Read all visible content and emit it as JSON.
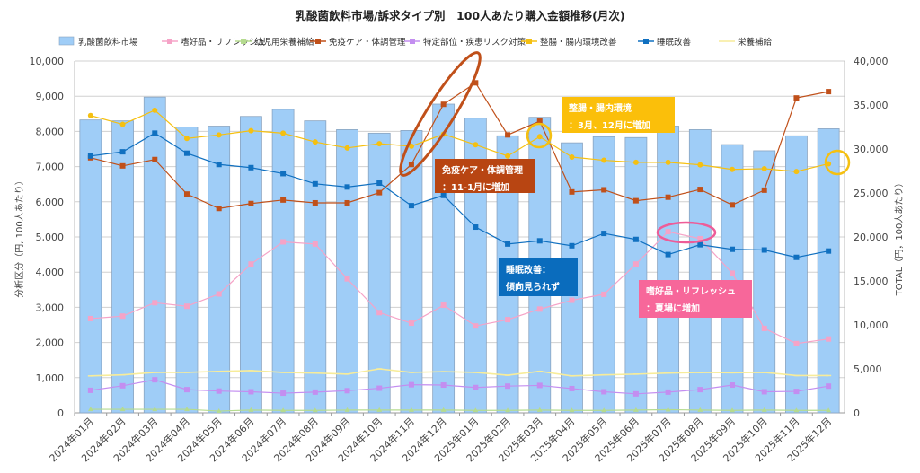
{
  "chart_data": {
    "type": "bar+line",
    "title": "乳酸菌飲料市場/訴求タイプ別　100人あたり購入金額推移(月次)",
    "ylabel": "分析区分（円, 100人あたり）",
    "y2label": "TOTAL（円，100人あたり）",
    "ylim": [
      0,
      10000
    ],
    "y2lim": [
      0,
      40000
    ],
    "yticks": [
      "0",
      "1,000",
      "2,000",
      "3,000",
      "4,000",
      "5,000",
      "6,000",
      "7,000",
      "8,000",
      "9,000",
      "10,000"
    ],
    "y2ticks": [
      "0",
      "5,000",
      "10,000",
      "15,000",
      "20,000",
      "25,000",
      "30,000",
      "35,000",
      "40,000"
    ],
    "grid": true,
    "legend": "top",
    "categories": [
      "2024年01月",
      "2024年02月",
      "2024年03月",
      "2024年04月",
      "2024年05月",
      "2024年06月",
      "2024年07月",
      "2024年08月",
      "2024年09月",
      "2024年10月",
      "2024年11月",
      "2024年12月",
      "2025年01月",
      "2025年02月",
      "2025年03月",
      "2025年04月",
      "2025年05月",
      "2025年06月",
      "2025年07月",
      "2025年08月",
      "2025年09月",
      "2025年10月",
      "2025年11月",
      "2025年12月"
    ],
    "bar_series": {
      "name": "乳酸菌飲料市場",
      "axis": "right",
      "color": "#9fcdf7",
      "values": [
        33300,
        33200,
        35900,
        32500,
        32600,
        33700,
        34500,
        33200,
        32200,
        31800,
        32100,
        35100,
        33500,
        31500,
        33600,
        30700,
        31400,
        31300,
        32600,
        32200,
        30500,
        29800,
        31500,
        32300
      ]
    },
    "series": [
      {
        "name": "嗜好品・リフレッシュ",
        "color": "#f5a3c7",
        "marker": "square",
        "values": [
          2680,
          2750,
          3130,
          3030,
          3380,
          4230,
          4860,
          4800,
          3810,
          2850,
          2550,
          3060,
          2470,
          2650,
          2950,
          3200,
          3370,
          4230,
          5150,
          4950,
          3970,
          2400,
          1970,
          2100
        ]
      },
      {
        "name": "幼児用栄養補給",
        "color": "#b5db8f",
        "marker": "triangle",
        "values": [
          100,
          100,
          100,
          100,
          50,
          80,
          70,
          70,
          80,
          80,
          80,
          80,
          70,
          70,
          80,
          70,
          70,
          80,
          90,
          80,
          70,
          80,
          70,
          70
        ]
      },
      {
        "name": "免疫ケア・体調管理",
        "color": "#c0501a",
        "marker": "square",
        "values": [
          7250,
          7020,
          7200,
          6220,
          5810,
          5950,
          6050,
          5970,
          5970,
          6260,
          7060,
          8770,
          9380,
          7900,
          8290,
          6280,
          6340,
          6030,
          6130,
          6350,
          5910,
          6330,
          8950,
          9130
        ]
      },
      {
        "name": "特定部位・疾患リスク対策",
        "color": "#c38ef0",
        "marker": "square",
        "values": [
          640,
          770,
          940,
          660,
          620,
          600,
          560,
          590,
          630,
          700,
          800,
          790,
          720,
          760,
          780,
          690,
          600,
          540,
          590,
          660,
          790,
          600,
          610,
          760
        ]
      },
      {
        "name": "整腸・腸内環境改善",
        "color": "#f5c011",
        "marker": "circle",
        "values": [
          8450,
          8200,
          8600,
          7800,
          7900,
          8020,
          7950,
          7700,
          7530,
          7650,
          7580,
          7920,
          7620,
          7300,
          7850,
          7270,
          7180,
          7120,
          7120,
          7050,
          6920,
          6940,
          6860,
          7080
        ]
      },
      {
        "name": "睡眠改善",
        "color": "#1070c0",
        "marker": "square",
        "values": [
          7300,
          7420,
          7950,
          7380,
          7060,
          6970,
          6800,
          6510,
          6420,
          6530,
          5890,
          6180,
          5280,
          4800,
          4890,
          4750,
          5100,
          4930,
          4500,
          4780,
          4650,
          4630,
          4420,
          4600
        ]
      },
      {
        "name": "栄養補給",
        "color": "#f7ec9a",
        "marker": "dash",
        "values": [
          1050,
          1080,
          1150,
          1150,
          1180,
          1200,
          1150,
          1130,
          1100,
          1250,
          1150,
          1170,
          1150,
          1070,
          1180,
          1050,
          1080,
          1100,
          1130,
          1150,
          1140,
          1150,
          1060,
          1060
        ]
      }
    ],
    "annotations": [
      {
        "text1": "免疫ケア・体調管理",
        "text2": "：11-1月に増加",
        "color": "#b84512"
      },
      {
        "text1": "整腸・腸内環境",
        "text2": "：3月、12月に増加",
        "color": "#fbbf0a"
      },
      {
        "text1": "睡眠改善：",
        "text2": "傾向見られず",
        "color": "#0a6cbd"
      },
      {
        "text1": "嗜好品・リフレッシュ",
        "text2": "：夏場に増加",
        "color": "#f7679a"
      }
    ]
  }
}
